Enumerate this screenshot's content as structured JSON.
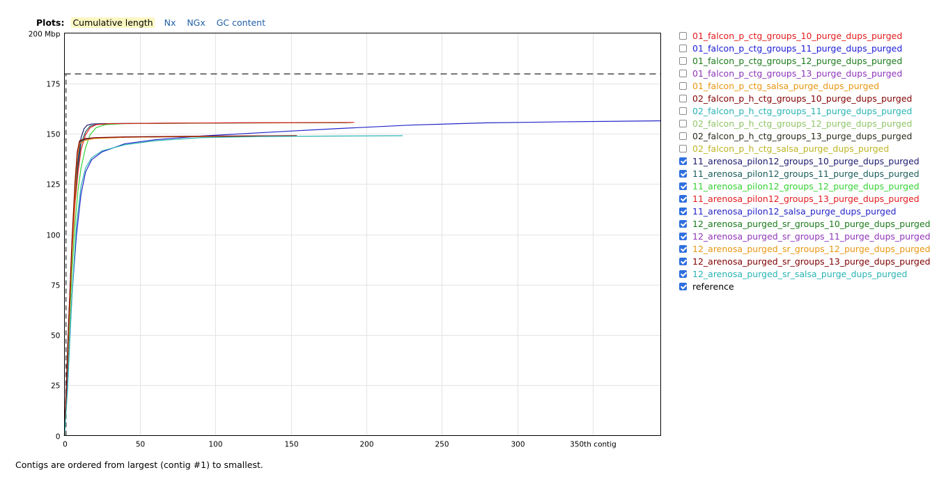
{
  "plots_bar": {
    "label": "Plots:",
    "tabs": [
      {
        "label": "Cumulative length",
        "active": true
      },
      {
        "label": "Nx",
        "active": false
      },
      {
        "label": "NGx",
        "active": false
      },
      {
        "label": "GC content",
        "active": false
      }
    ]
  },
  "footnote": "Contigs are ordered from largest (contig #1) to smallest.",
  "chart_data": {
    "type": "line",
    "title": "",
    "xlabel": "",
    "ylabel": "",
    "xlim": [
      0,
      395
    ],
    "ylim": [
      0,
      200
    ],
    "x_ticks": [
      0,
      50,
      100,
      150,
      200,
      250,
      300,
      350
    ],
    "x_tick_labels": [
      "0",
      "50",
      "100",
      "150",
      "200",
      "250",
      "300",
      "350th contig"
    ],
    "y_ticks": [
      0,
      25,
      50,
      75,
      100,
      125,
      150,
      175,
      200
    ],
    "y_tick_labels": [
      "0",
      "25",
      "50",
      "75",
      "100",
      "125",
      "150",
      "175",
      "200 Mbp"
    ],
    "grid": true,
    "legend_position": "right",
    "reference": {
      "name": "reference",
      "value": 179.7,
      "contigs": 1,
      "color": "#555555",
      "checked": true
    },
    "series": [
      {
        "name": "01_falcon_p_ctg_groups_10_purge_dups_purged",
        "color": "#e41a1c",
        "checked": false,
        "points": []
      },
      {
        "name": "01_falcon_p_ctg_groups_11_purge_dups_purged",
        "color": "#1a1ad6",
        "checked": false,
        "points": []
      },
      {
        "name": "01_falcon_p_ctg_groups_12_purge_dups_purged",
        "color": "#1b7a1b",
        "checked": false,
        "points": []
      },
      {
        "name": "01_falcon_p_ctg_groups_13_purge_dups_purged",
        "color": "#8e35b8",
        "checked": false,
        "points": []
      },
      {
        "name": "01_falcon_p_ctg_salsa_purge_dups_purged",
        "color": "#e89611",
        "checked": false,
        "points": []
      },
      {
        "name": "02_falcon_p_h_ctg_groups_10_purge_dups_purged",
        "color": "#800000",
        "checked": false,
        "points": []
      },
      {
        "name": "02_falcon_p_h_ctg_groups_11_purge_dups_purged",
        "color": "#29b3b3",
        "checked": false,
        "points": []
      },
      {
        "name": "02_falcon_p_h_ctg_groups_12_purge_dups_purged",
        "color": "#92c569",
        "checked": false,
        "points": []
      },
      {
        "name": "02_falcon_p_h_ctg_groups_13_purge_dups_purged",
        "color": "#2b2b1c",
        "checked": false,
        "points": []
      },
      {
        "name": "02_falcon_p_h_ctg_salsa_purge_dups_purged",
        "color": "#bdb525",
        "checked": false,
        "points": []
      },
      {
        "name": "11_arenosa_pilon12_groups_10_purge_dups_purged",
        "color": "#1a1a6e",
        "checked": true,
        "points": [
          [
            0,
            0
          ],
          [
            1,
            20
          ],
          [
            3,
            60
          ],
          [
            5,
            95
          ],
          [
            7,
            120
          ],
          [
            9,
            137
          ],
          [
            11,
            148
          ],
          [
            13,
            152.5
          ],
          [
            15,
            154.2
          ],
          [
            18,
            154.8
          ],
          [
            25,
            155
          ],
          [
            60,
            155.2
          ],
          [
            120,
            155.4
          ],
          [
            187,
            155.5
          ]
        ]
      },
      {
        "name": "11_arenosa_pilon12_groups_11_purge_dups_purged",
        "color": "#1b5c5c",
        "checked": true,
        "points": [
          [
            0,
            0
          ],
          [
            1,
            18
          ],
          [
            3,
            58
          ],
          [
            5,
            93
          ],
          [
            7,
            118
          ],
          [
            9,
            134
          ],
          [
            11,
            145
          ],
          [
            14,
            151
          ],
          [
            17,
            153.8
          ],
          [
            22,
            154.7
          ],
          [
            35,
            155
          ],
          [
            80,
            155.2
          ],
          [
            140,
            155.4
          ],
          [
            187,
            155.5
          ]
        ]
      },
      {
        "name": "11_arenosa_pilon12_groups_12_purge_dups_purged",
        "color": "#34d234",
        "checked": true,
        "points": [
          [
            0,
            0
          ],
          [
            1,
            15
          ],
          [
            3,
            50
          ],
          [
            5,
            82
          ],
          [
            7,
            105
          ],
          [
            9,
            122
          ],
          [
            11,
            133
          ],
          [
            14,
            143
          ],
          [
            17,
            149.5
          ],
          [
            21,
            153
          ],
          [
            27,
            154.5
          ],
          [
            40,
            155
          ],
          [
            100,
            155.3
          ],
          [
            190,
            155.5
          ]
        ]
      },
      {
        "name": "11_arenosa_pilon12_groups_13_purge_dups_purged",
        "color": "#e41a1c",
        "checked": true,
        "points": [
          [
            0,
            0
          ],
          [
            1,
            17
          ],
          [
            3,
            55
          ],
          [
            5,
            90
          ],
          [
            7,
            115
          ],
          [
            9,
            131
          ],
          [
            11,
            142
          ],
          [
            14,
            149.5
          ],
          [
            17,
            153
          ],
          [
            21,
            154.5
          ],
          [
            30,
            155
          ],
          [
            80,
            155.3
          ],
          [
            150,
            155.5
          ],
          [
            192,
            155.6
          ]
        ]
      },
      {
        "name": "11_arenosa_pilon12_salsa_purge_dups_purged",
        "color": "#2424c8",
        "checked": true,
        "points": [
          [
            0,
            0
          ],
          [
            2,
            25
          ],
          [
            5,
            70
          ],
          [
            8,
            100
          ],
          [
            11,
            120
          ],
          [
            14,
            131
          ],
          [
            18,
            137
          ],
          [
            25,
            141
          ],
          [
            40,
            145
          ],
          [
            60,
            147
          ],
          [
            90,
            148.8
          ],
          [
            130,
            150.5
          ],
          [
            180,
            152.5
          ],
          [
            230,
            154.3
          ],
          [
            280,
            155.4
          ],
          [
            330,
            155.9
          ],
          [
            395,
            156.4
          ]
        ]
      },
      {
        "name": "12_arenosa_purged_sr_groups_10_purge_dups_purged",
        "color": "#1b7a1b",
        "checked": true,
        "points": [
          [
            0,
            0
          ],
          [
            1,
            18
          ],
          [
            3,
            58
          ],
          [
            5,
            95
          ],
          [
            7,
            124
          ],
          [
            8.5,
            140
          ],
          [
            10,
            146
          ],
          [
            14,
            147.3
          ],
          [
            20,
            147.8
          ],
          [
            40,
            148.3
          ],
          [
            80,
            148.6
          ],
          [
            120,
            148.8
          ],
          [
            153,
            148.9
          ]
        ]
      },
      {
        "name": "12_arenosa_purged_sr_groups_11_purge_dups_purged",
        "color": "#8e35b8",
        "checked": true,
        "points": [
          [
            0,
            0
          ],
          [
            1,
            18
          ],
          [
            3,
            57
          ],
          [
            5,
            93
          ],
          [
            7,
            122
          ],
          [
            8.5,
            139
          ],
          [
            10,
            145.5
          ],
          [
            14,
            147
          ],
          [
            20,
            147.7
          ],
          [
            40,
            148.2
          ],
          [
            80,
            148.5
          ],
          [
            120,
            148.8
          ],
          [
            153,
            148.9
          ]
        ]
      },
      {
        "name": "12_arenosa_purged_sr_groups_12_purge_dups_purged",
        "color": "#e89611",
        "checked": true,
        "points": [
          [
            0,
            0
          ],
          [
            1,
            17
          ],
          [
            3,
            56
          ],
          [
            5,
            92
          ],
          [
            7,
            121
          ],
          [
            8.5,
            138
          ],
          [
            10,
            145
          ],
          [
            14,
            146.8
          ],
          [
            20,
            147.6
          ],
          [
            40,
            148.2
          ],
          [
            80,
            148.5
          ],
          [
            120,
            148.8
          ],
          [
            153,
            148.9
          ]
        ]
      },
      {
        "name": "12_arenosa_purged_sr_groups_13_purge_dups_purged",
        "color": "#800000",
        "checked": true,
        "points": [
          [
            0,
            0
          ],
          [
            1,
            19
          ],
          [
            3,
            60
          ],
          [
            5,
            97
          ],
          [
            7,
            126
          ],
          [
            8.5,
            141
          ],
          [
            10,
            146.5
          ],
          [
            14,
            147.6
          ],
          [
            20,
            148
          ],
          [
            40,
            148.4
          ],
          [
            80,
            148.7
          ],
          [
            120,
            148.9
          ],
          [
            154,
            149
          ]
        ]
      },
      {
        "name": "12_arenosa_purged_sr_salsa_purge_dups_purged",
        "color": "#29b3b3",
        "checked": true,
        "points": [
          [
            0,
            0
          ],
          [
            2,
            22
          ],
          [
            5,
            70
          ],
          [
            8,
            105
          ],
          [
            11,
            124
          ],
          [
            14,
            133
          ],
          [
            18,
            138
          ],
          [
            25,
            141.5
          ],
          [
            40,
            144.5
          ],
          [
            60,
            146.5
          ],
          [
            90,
            148
          ],
          [
            130,
            148.6
          ],
          [
            170,
            148.8
          ],
          [
            224,
            149
          ]
        ]
      }
    ]
  }
}
